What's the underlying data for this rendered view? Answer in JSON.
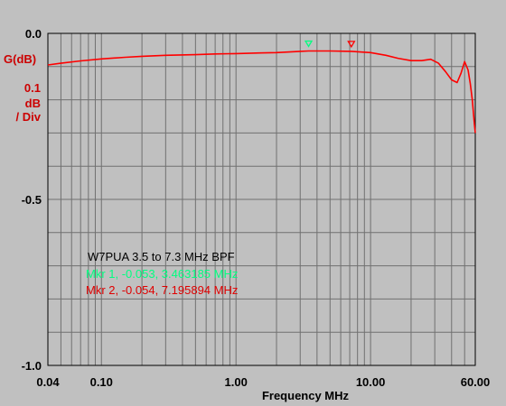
{
  "chart_data": {
    "type": "line",
    "title": "W7PUA 3.5 to 7.3 MHz BPF",
    "xlabel": "Frequency MHz",
    "ylabel": "G(dB)",
    "scale_lines": [
      "0.1",
      "dB",
      "/ Div"
    ],
    "x_scale": "log",
    "xlim": [
      0.04,
      60.0
    ],
    "ylim": [
      -1.0,
      0.0
    ],
    "x_tick_labels": [
      "0.04",
      "0.10",
      "1.00",
      "10.00",
      "60.00"
    ],
    "x_tick_values": [
      0.04,
      0.1,
      1.0,
      10.0,
      60.0
    ],
    "y_tick_labels": [
      "0.0",
      "-0.5",
      "-1.0"
    ],
    "y_tick_values": [
      0.0,
      -0.5,
      -1.0
    ],
    "grid": true,
    "series": [
      {
        "color": "#ff0000",
        "x": [
          0.04,
          0.05,
          0.07,
          0.1,
          0.15,
          0.2,
          0.3,
          0.5,
          0.7,
          1.0,
          1.5,
          2.0,
          3.0,
          3.46,
          5.0,
          7.2,
          10.0,
          13.0,
          16.0,
          20.0,
          24.0,
          28.0,
          32.0,
          36.0,
          40.0,
          44.0,
          47.0,
          50.0,
          53.0,
          55.0,
          57.0,
          59.0,
          60.0
        ],
        "y": [
          -0.095,
          -0.09,
          -0.083,
          -0.077,
          -0.072,
          -0.069,
          -0.066,
          -0.064,
          -0.062,
          -0.061,
          -0.059,
          -0.058,
          -0.054,
          -0.053,
          -0.053,
          -0.054,
          -0.058,
          -0.066,
          -0.075,
          -0.082,
          -0.082,
          -0.078,
          -0.09,
          -0.115,
          -0.14,
          -0.148,
          -0.12,
          -0.085,
          -0.11,
          -0.15,
          -0.2,
          -0.27,
          -0.3
        ]
      }
    ],
    "markers": [
      {
        "label": "Mkr 1, -0.053, 3.463185 MHz",
        "x": 3.463185,
        "y": -0.053,
        "color": "#00ff80",
        "symbol": "▽"
      },
      {
        "label": "Mkr 2, -0.054, 7.195894 MHz",
        "x": 7.195894,
        "y": -0.054,
        "color": "#ff0000",
        "symbol": "▽"
      }
    ]
  }
}
